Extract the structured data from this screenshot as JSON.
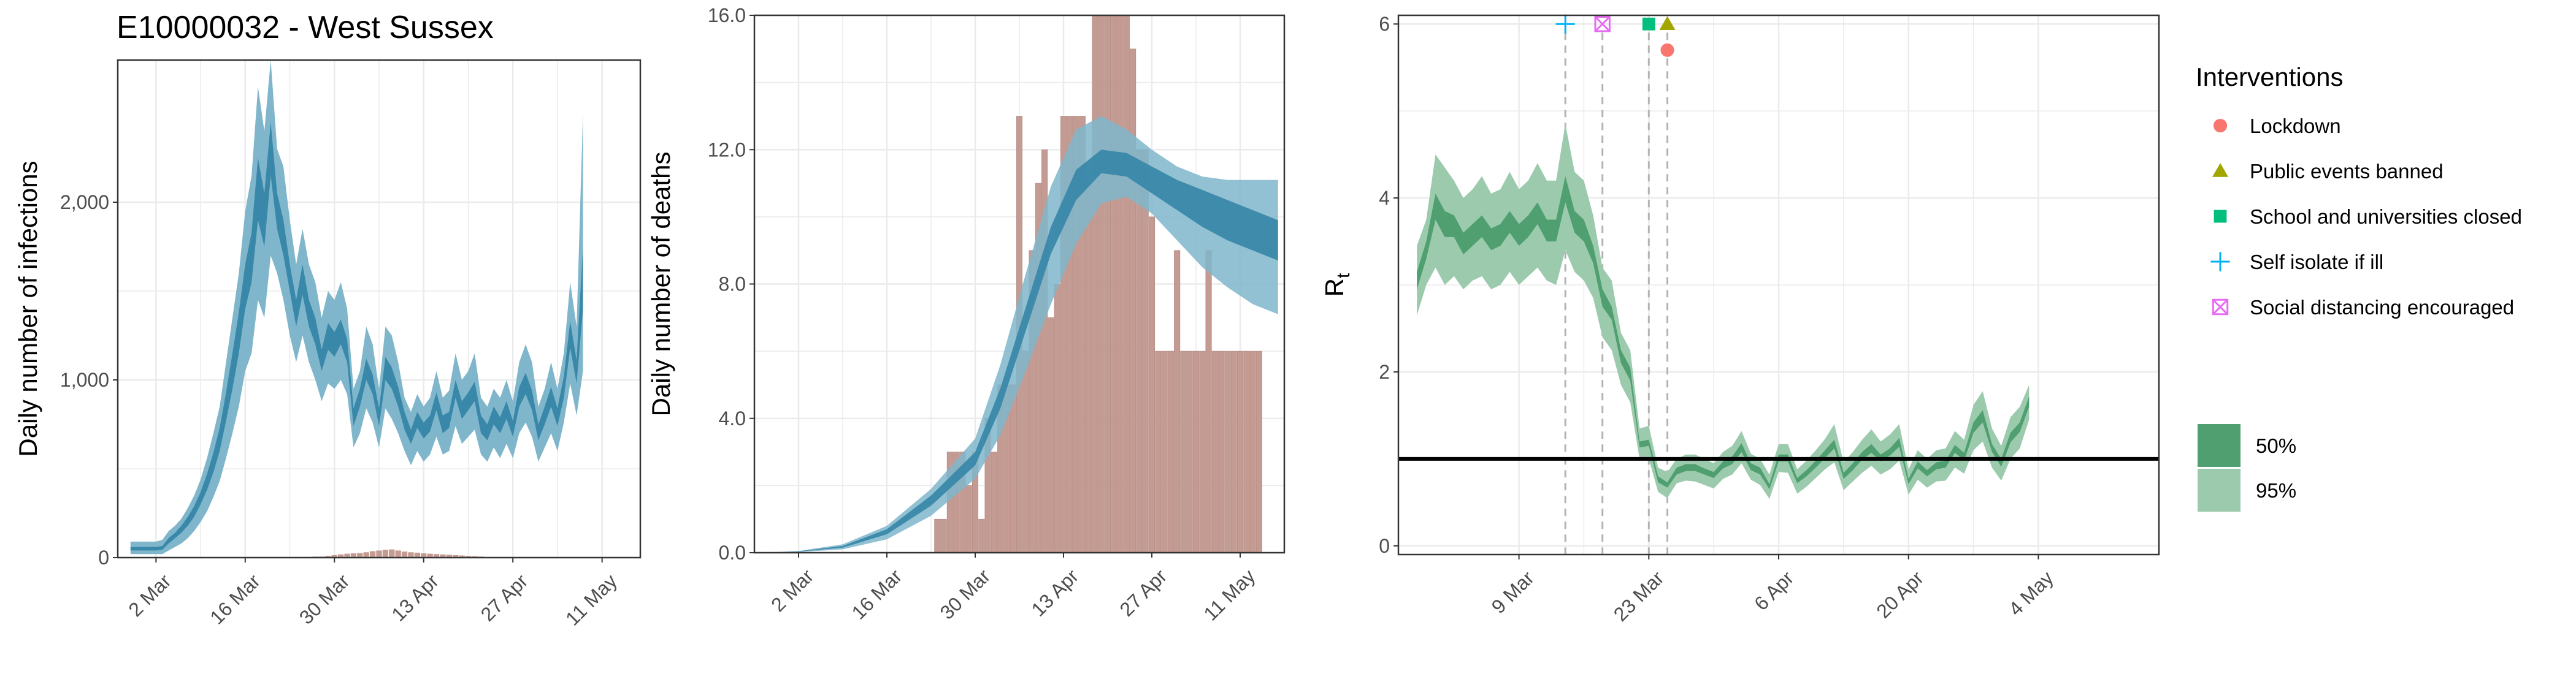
{
  "title": "E10000032 - West Sussex",
  "colors": {
    "band_95": "#7fb6cb",
    "band_50": "#3a88a9",
    "bars": "#c49b92",
    "rt_95": "#9ccaad",
    "rt_50": "#4f9f70",
    "grid": "#ebebeb",
    "lockdown": "#f8766d",
    "public_events": "#a3a500",
    "school": "#00bf7d",
    "self_isolate": "#00b0f6",
    "social_distancing": "#e76bf3"
  },
  "legend": {
    "interventions_title": "Interventions",
    "items": [
      {
        "label": "Lockdown",
        "shape": "circle",
        "color": "#f8766d"
      },
      {
        "label": "Public events banned",
        "shape": "triangle",
        "color": "#a3a500"
      },
      {
        "label": "School and universities closed",
        "shape": "square",
        "color": "#00bf7d"
      },
      {
        "label": "Self isolate if ill",
        "shape": "plus",
        "color": "#00b0f6"
      },
      {
        "label": "Social distancing encouraged",
        "shape": "boxcross",
        "color": "#e76bf3"
      }
    ],
    "bands": [
      {
        "label": "50%",
        "color": "#4f9f70"
      },
      {
        "label": "95%",
        "color": "#9ccaad"
      }
    ]
  },
  "chart_data": [
    {
      "type": "area",
      "ylabel": "Daily number of infections",
      "x_ticks": [
        "2 Mar",
        "16 Mar",
        "30 Mar",
        "13 Apr",
        "27 Apr",
        "11 May"
      ],
      "x_tick_days": [
        0,
        14,
        28,
        42,
        56,
        70
      ],
      "x_range_days": [
        -6,
        76
      ],
      "y_ticks": [
        "0",
        "1,000",
        "2,000"
      ],
      "y_tick_values": [
        0,
        1000,
        2000
      ],
      "ylim": [
        0,
        2800
      ],
      "x_start_day": -4,
      "band_95": {
        "lower": [
          20,
          20,
          20,
          20,
          20,
          20,
          40,
          60,
          80,
          110,
          150,
          200,
          260,
          340,
          430,
          560,
          700,
          850,
          1050,
          1150,
          1450,
          1350,
          1700,
          1600,
          1450,
          1250,
          1100,
          1250,
          1100,
          1000,
          880,
          980,
          950,
          1000,
          920,
          620,
          700,
          840,
          760,
          620,
          840,
          780,
          700,
          600,
          520,
          600,
          540,
          580,
          680,
          580,
          600,
          740,
          640,
          680,
          720,
          580,
          540,
          620,
          560,
          640,
          560,
          700,
          760,
          680,
          540,
          620,
          700,
          600,
          760,
          980,
          800,
          1050
        ],
        "upper": [
          90,
          90,
          90,
          90,
          90,
          100,
          150,
          180,
          220,
          280,
          350,
          440,
          560,
          700,
          850,
          1100,
          1350,
          1600,
          1950,
          2150,
          2650,
          2400,
          2800,
          2300,
          2200,
          1900,
          1650,
          1850,
          1650,
          1550,
          1350,
          1500,
          1450,
          1550,
          1400,
          950,
          1050,
          1300,
          1200,
          950,
          1300,
          1250,
          1100,
          900,
          820,
          920,
          850,
          900,
          1050,
          900,
          940,
          1150,
          1000,
          1050,
          1150,
          900,
          850,
          950,
          900,
          1000,
          880,
          1100,
          1200,
          1100,
          850,
          950,
          1100,
          950,
          1150,
          1550,
          1300,
          2500
        ]
      },
      "band_50": {
        "lower": [
          40,
          40,
          40,
          40,
          40,
          45,
          80,
          110,
          140,
          180,
          230,
          300,
          380,
          480,
          600,
          770,
          950,
          1150,
          1400,
          1550,
          1900,
          1750,
          2150,
          1850,
          1700,
          1500,
          1300,
          1480,
          1300,
          1200,
          1050,
          1170,
          1130,
          1200,
          1100,
          740,
          850,
          1000,
          920,
          740,
          1000,
          950,
          850,
          720,
          640,
          730,
          670,
          710,
          830,
          700,
          730,
          900,
          780,
          830,
          880,
          700,
          660,
          750,
          700,
          780,
          680,
          850,
          920,
          830,
          660,
          750,
          850,
          740,
          900,
          1180,
          980,
          1400
        ],
        "upper": [
          60,
          60,
          60,
          60,
          60,
          65,
          110,
          140,
          180,
          230,
          290,
          370,
          470,
          590,
          730,
          930,
          1150,
          1380,
          1650,
          1830,
          2250,
          2050,
          2450,
          2050,
          1900,
          1650,
          1450,
          1650,
          1450,
          1350,
          1170,
          1320,
          1270,
          1340,
          1230,
          840,
          950,
          1120,
          1030,
          840,
          1130,
          1070,
          960,
          820,
          720,
          820,
          760,
          800,
          930,
          800,
          820,
          1000,
          880,
          930,
          990,
          800,
          750,
          850,
          790,
          880,
          770,
          960,
          1040,
          940,
          750,
          850,
          960,
          840,
          1020,
          1330,
          1110,
          1750
        ]
      },
      "bars": {
        "start_day": 24,
        "values": [
          4,
          6,
          6,
          10,
          14,
          18,
          22,
          24,
          26,
          30,
          36,
          40,
          44,
          46,
          40,
          34,
          30,
          28,
          24,
          22,
          20,
          18,
          16,
          14,
          12,
          10,
          8,
          6
        ]
      }
    },
    {
      "type": "area",
      "ylabel": "Daily number of deaths",
      "x_ticks": [
        "2 Mar",
        "16 Mar",
        "30 Mar",
        "13 Apr",
        "27 Apr",
        "11 May"
      ],
      "x_tick_days": [
        0,
        14,
        28,
        42,
        56,
        70
      ],
      "x_range_days": [
        -7,
        77
      ],
      "y_ticks": [
        "0.0",
        "4.0",
        "8.0",
        "12.0",
        "16.0"
      ],
      "y_tick_values": [
        0,
        4,
        8,
        12,
        16
      ],
      "ylim": [
        0,
        16
      ],
      "bars": {
        "start_day": 22,
        "values": [
          1,
          1,
          3,
          3,
          3,
          2,
          3,
          1,
          4,
          3,
          5,
          5,
          5,
          13,
          6,
          9,
          11,
          12,
          7,
          8,
          13,
          13,
          13,
          13,
          11,
          16,
          16,
          16,
          16,
          16,
          16,
          15,
          12,
          12,
          10,
          6,
          6,
          6,
          9,
          6,
          6,
          6,
          6,
          9,
          6,
          6,
          6,
          6,
          6,
          6,
          6,
          6
        ]
      },
      "curve_points_days": [
        -6,
        0,
        7,
        14,
        21,
        28,
        32,
        36,
        40,
        44,
        48,
        52,
        56,
        60,
        64,
        68,
        72,
        76
      ],
      "band_95": {
        "lower": [
          0,
          0.02,
          0.1,
          0.4,
          1.1,
          2.2,
          3.5,
          5.4,
          7.4,
          9.2,
          10.4,
          10.6,
          10.1,
          9.3,
          8.5,
          7.9,
          7.4,
          7.1
        ],
        "upper": [
          0,
          0.05,
          0.25,
          0.8,
          1.9,
          3.4,
          5.6,
          8.3,
          10.9,
          12.6,
          13.0,
          12.6,
          12.0,
          11.5,
          11.2,
          11.1,
          11.1,
          11.1
        ]
      },
      "band_50": {
        "lower": [
          0,
          0.03,
          0.15,
          0.55,
          1.4,
          2.6,
          4.3,
          6.6,
          8.9,
          10.5,
          11.3,
          11.2,
          10.7,
          10.2,
          9.7,
          9.3,
          9.0,
          8.7
        ],
        "upper": [
          0,
          0.04,
          0.2,
          0.7,
          1.7,
          3.0,
          4.9,
          7.3,
          9.7,
          11.4,
          12.0,
          11.9,
          11.5,
          11.1,
          10.8,
          10.5,
          10.2,
          9.9
        ]
      }
    },
    {
      "type": "area",
      "ylabel": "R",
      "ylabel_sub": "t",
      "x_ticks": [
        "9 Mar",
        "23 Mar",
        "6 Apr",
        "20 Apr",
        "4 May"
      ],
      "x_tick_days": [
        7,
        21,
        35,
        49,
        63
      ],
      "x_range_days": [
        -6,
        76
      ],
      "y_ticks": [
        "0",
        "2",
        "4",
        "6"
      ],
      "y_tick_values": [
        0,
        2,
        4,
        6
      ],
      "ylim": [
        -0.1,
        6.1
      ],
      "x_start_day": -4,
      "reference_line": 1.0,
      "band_95": {
        "lower": [
          2.65,
          3.0,
          3.2,
          3.0,
          3.1,
          2.95,
          3.05,
          3.1,
          2.95,
          3.0,
          3.15,
          3.0,
          3.1,
          3.2,
          3.05,
          3.0,
          3.4,
          3.15,
          3.05,
          2.85,
          2.4,
          2.25,
          1.85,
          1.65,
          1.0,
          1.0,
          0.62,
          0.55,
          0.72,
          0.75,
          0.74,
          0.7,
          0.66,
          0.77,
          0.82,
          0.95,
          0.76,
          0.7,
          0.54,
          0.85,
          0.84,
          0.6,
          0.68,
          0.78,
          0.88,
          0.96,
          0.64,
          0.74,
          0.84,
          0.92,
          0.82,
          0.88,
          0.98,
          0.59,
          0.76,
          0.67,
          0.74,
          0.75,
          0.9,
          0.83,
          1.1,
          1.2,
          0.9,
          0.75,
          1.0,
          1.12,
          1.45
        ],
        "upper": [
          3.45,
          3.75,
          4.5,
          4.35,
          4.2,
          4.0,
          4.1,
          4.25,
          4.05,
          4.1,
          4.3,
          4.1,
          4.2,
          4.4,
          4.2,
          4.2,
          4.85,
          4.3,
          4.2,
          3.8,
          3.2,
          3.05,
          2.45,
          2.25,
          1.35,
          1.38,
          0.9,
          0.85,
          1.0,
          1.05,
          1.05,
          1.0,
          0.95,
          1.08,
          1.15,
          1.32,
          1.06,
          1.0,
          0.82,
          1.17,
          1.17,
          0.88,
          0.98,
          1.1,
          1.23,
          1.4,
          0.96,
          1.08,
          1.22,
          1.34,
          1.2,
          1.28,
          1.4,
          0.88,
          1.1,
          1.0,
          1.1,
          1.12,
          1.32,
          1.22,
          1.62,
          1.78,
          1.35,
          1.15,
          1.48,
          1.6,
          1.85
        ]
      },
      "band_50": {
        "lower": [
          2.95,
          3.3,
          3.75,
          3.55,
          3.55,
          3.35,
          3.45,
          3.55,
          3.4,
          3.45,
          3.6,
          3.45,
          3.55,
          3.7,
          3.5,
          3.5,
          3.95,
          3.6,
          3.5,
          3.25,
          2.75,
          2.6,
          2.1,
          1.9,
          1.13,
          1.15,
          0.73,
          0.67,
          0.82,
          0.86,
          0.86,
          0.82,
          0.78,
          0.89,
          0.94,
          1.08,
          0.87,
          0.82,
          0.65,
          0.97,
          0.97,
          0.72,
          0.8,
          0.9,
          1.01,
          1.12,
          0.77,
          0.87,
          0.99,
          1.07,
          0.97,
          1.04,
          1.14,
          0.71,
          0.89,
          0.8,
          0.88,
          0.9,
          1.07,
          0.98,
          1.3,
          1.42,
          1.08,
          0.91,
          1.19,
          1.31,
          1.6
        ],
        "upper": [
          3.15,
          3.5,
          4.05,
          3.85,
          3.8,
          3.6,
          3.7,
          3.8,
          3.65,
          3.7,
          3.85,
          3.7,
          3.8,
          3.95,
          3.75,
          3.75,
          4.25,
          3.85,
          3.75,
          3.45,
          2.95,
          2.75,
          2.25,
          2.05,
          1.2,
          1.22,
          0.8,
          0.73,
          0.9,
          0.94,
          0.94,
          0.89,
          0.85,
          0.97,
          1.03,
          1.18,
          0.95,
          0.9,
          0.71,
          1.05,
          1.05,
          0.78,
          0.87,
          0.98,
          1.1,
          1.22,
          0.84,
          0.95,
          1.08,
          1.17,
          1.05,
          1.12,
          1.24,
          0.77,
          0.97,
          0.87,
          0.96,
          0.98,
          1.16,
          1.07,
          1.42,
          1.56,
          1.17,
          1.0,
          1.3,
          1.42,
          1.72
        ]
      },
      "interventions": [
        {
          "name": "Self isolate if ill",
          "day": 12,
          "y": 6.0,
          "shape": "plus",
          "color": "#00b0f6"
        },
        {
          "name": "Social distancing encouraged",
          "day": 16,
          "y": 6.0,
          "shape": "boxcross",
          "color": "#e76bf3"
        },
        {
          "name": "School and universities closed",
          "day": 21,
          "y": 6.0,
          "shape": "square",
          "color": "#00bf7d"
        },
        {
          "name": "Public events banned",
          "day": 23,
          "y": 6.0,
          "shape": "triangle",
          "color": "#a3a500"
        },
        {
          "name": "Lockdown",
          "day": 23,
          "y": 5.7,
          "shape": "circle",
          "color": "#f8766d"
        }
      ]
    }
  ]
}
